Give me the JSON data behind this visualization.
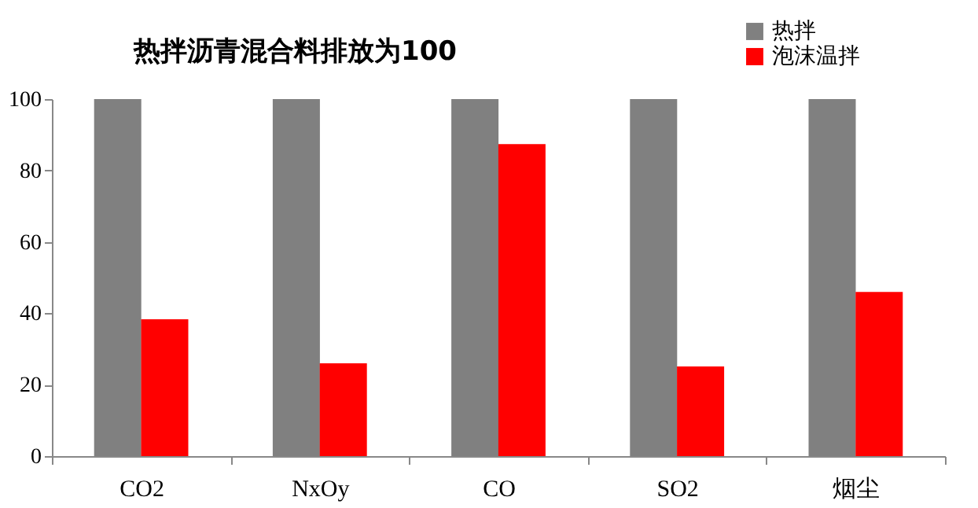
{
  "chart_data": {
    "type": "bar",
    "title": "热拌沥青混合料排放为100",
    "categories": [
      "CO2",
      "NxOy",
      "CO",
      "SO2",
      "烟尘"
    ],
    "series": [
      {
        "name": "热拌",
        "color": "#808080",
        "values": [
          100,
          100,
          100,
          100,
          100
        ]
      },
      {
        "name": "泡沫温拌",
        "color": "#ff0000",
        "values": [
          38.3,
          26,
          87.4,
          25.1,
          46
        ]
      }
    ],
    "ylim": [
      0,
      100
    ],
    "yticks": [
      0,
      20,
      40,
      60,
      80,
      100
    ],
    "grid": false,
    "legend": "top right"
  }
}
